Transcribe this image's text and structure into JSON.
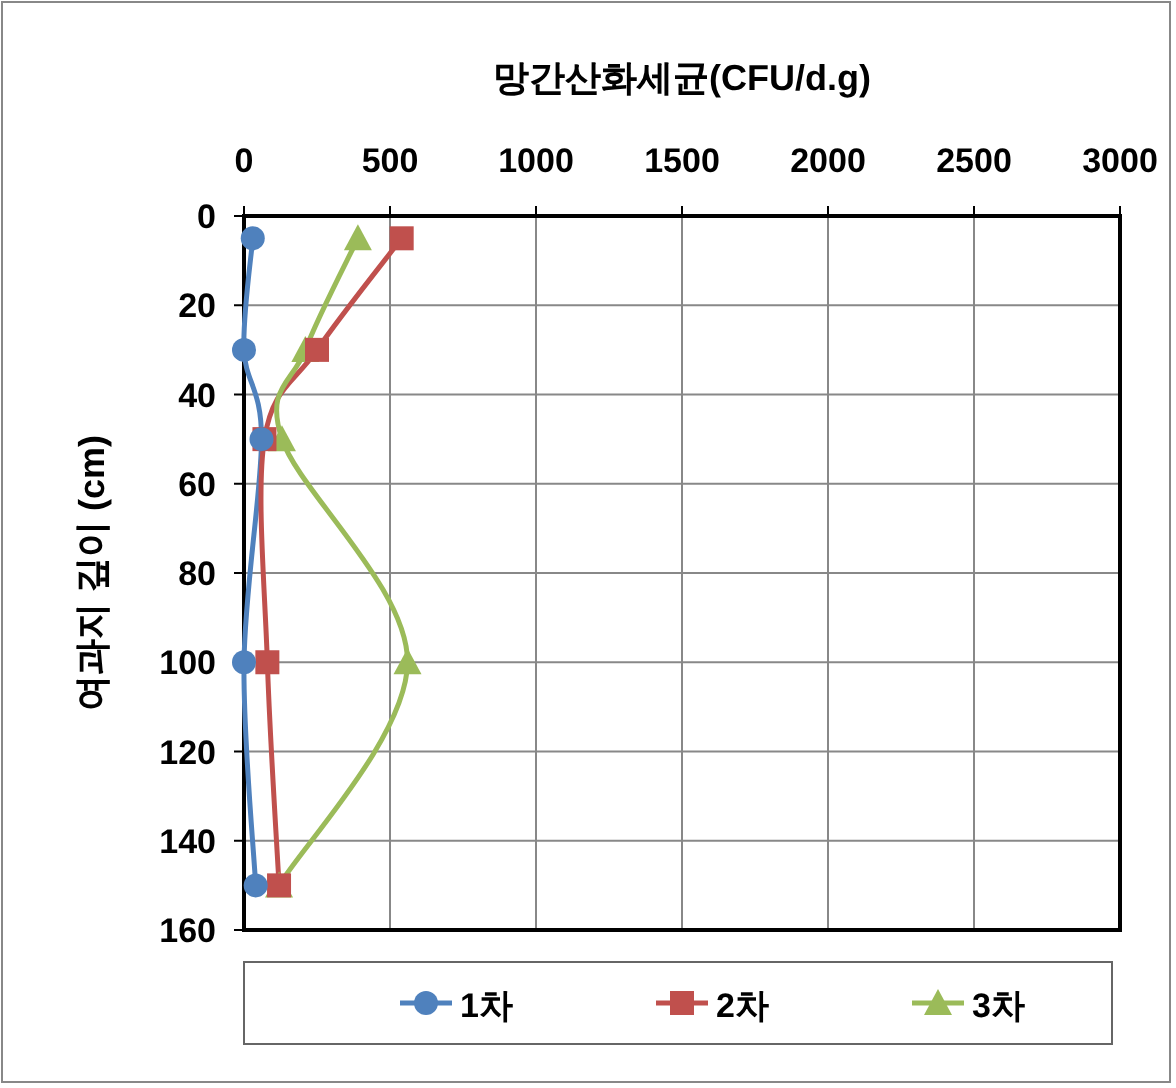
{
  "chart_data": {
    "type": "line",
    "xlabel": "망간산화세균(CFU/d.g)",
    "ylabel": "여과지 깊이 (cm)",
    "xlim": [
      0,
      3000
    ],
    "xticks": [
      0,
      500,
      1000,
      1500,
      2000,
      2500,
      3000
    ],
    "ylim": [
      160,
      0
    ],
    "yticks": [
      0,
      20,
      40,
      60,
      80,
      100,
      120,
      140,
      160
    ],
    "grid": true,
    "legend": "bottom",
    "series": [
      {
        "name": "1차",
        "color": "#4f81bd",
        "marker": "circle",
        "x": [
          30,
          0,
          60,
          0,
          40
        ],
        "values": [
          5,
          30,
          50,
          100,
          150
        ]
      },
      {
        "name": "2차",
        "color": "#c0504d",
        "marker": "square",
        "x": [
          540,
          250,
          70,
          80,
          120
        ],
        "values": [
          5,
          30,
          50,
          100,
          150
        ]
      },
      {
        "name": "3차",
        "color": "#9bbb59",
        "marker": "triangle",
        "x": [
          390,
          210,
          130,
          560,
          120
        ],
        "values": [
          5,
          30,
          50,
          100,
          150
        ]
      }
    ]
  }
}
